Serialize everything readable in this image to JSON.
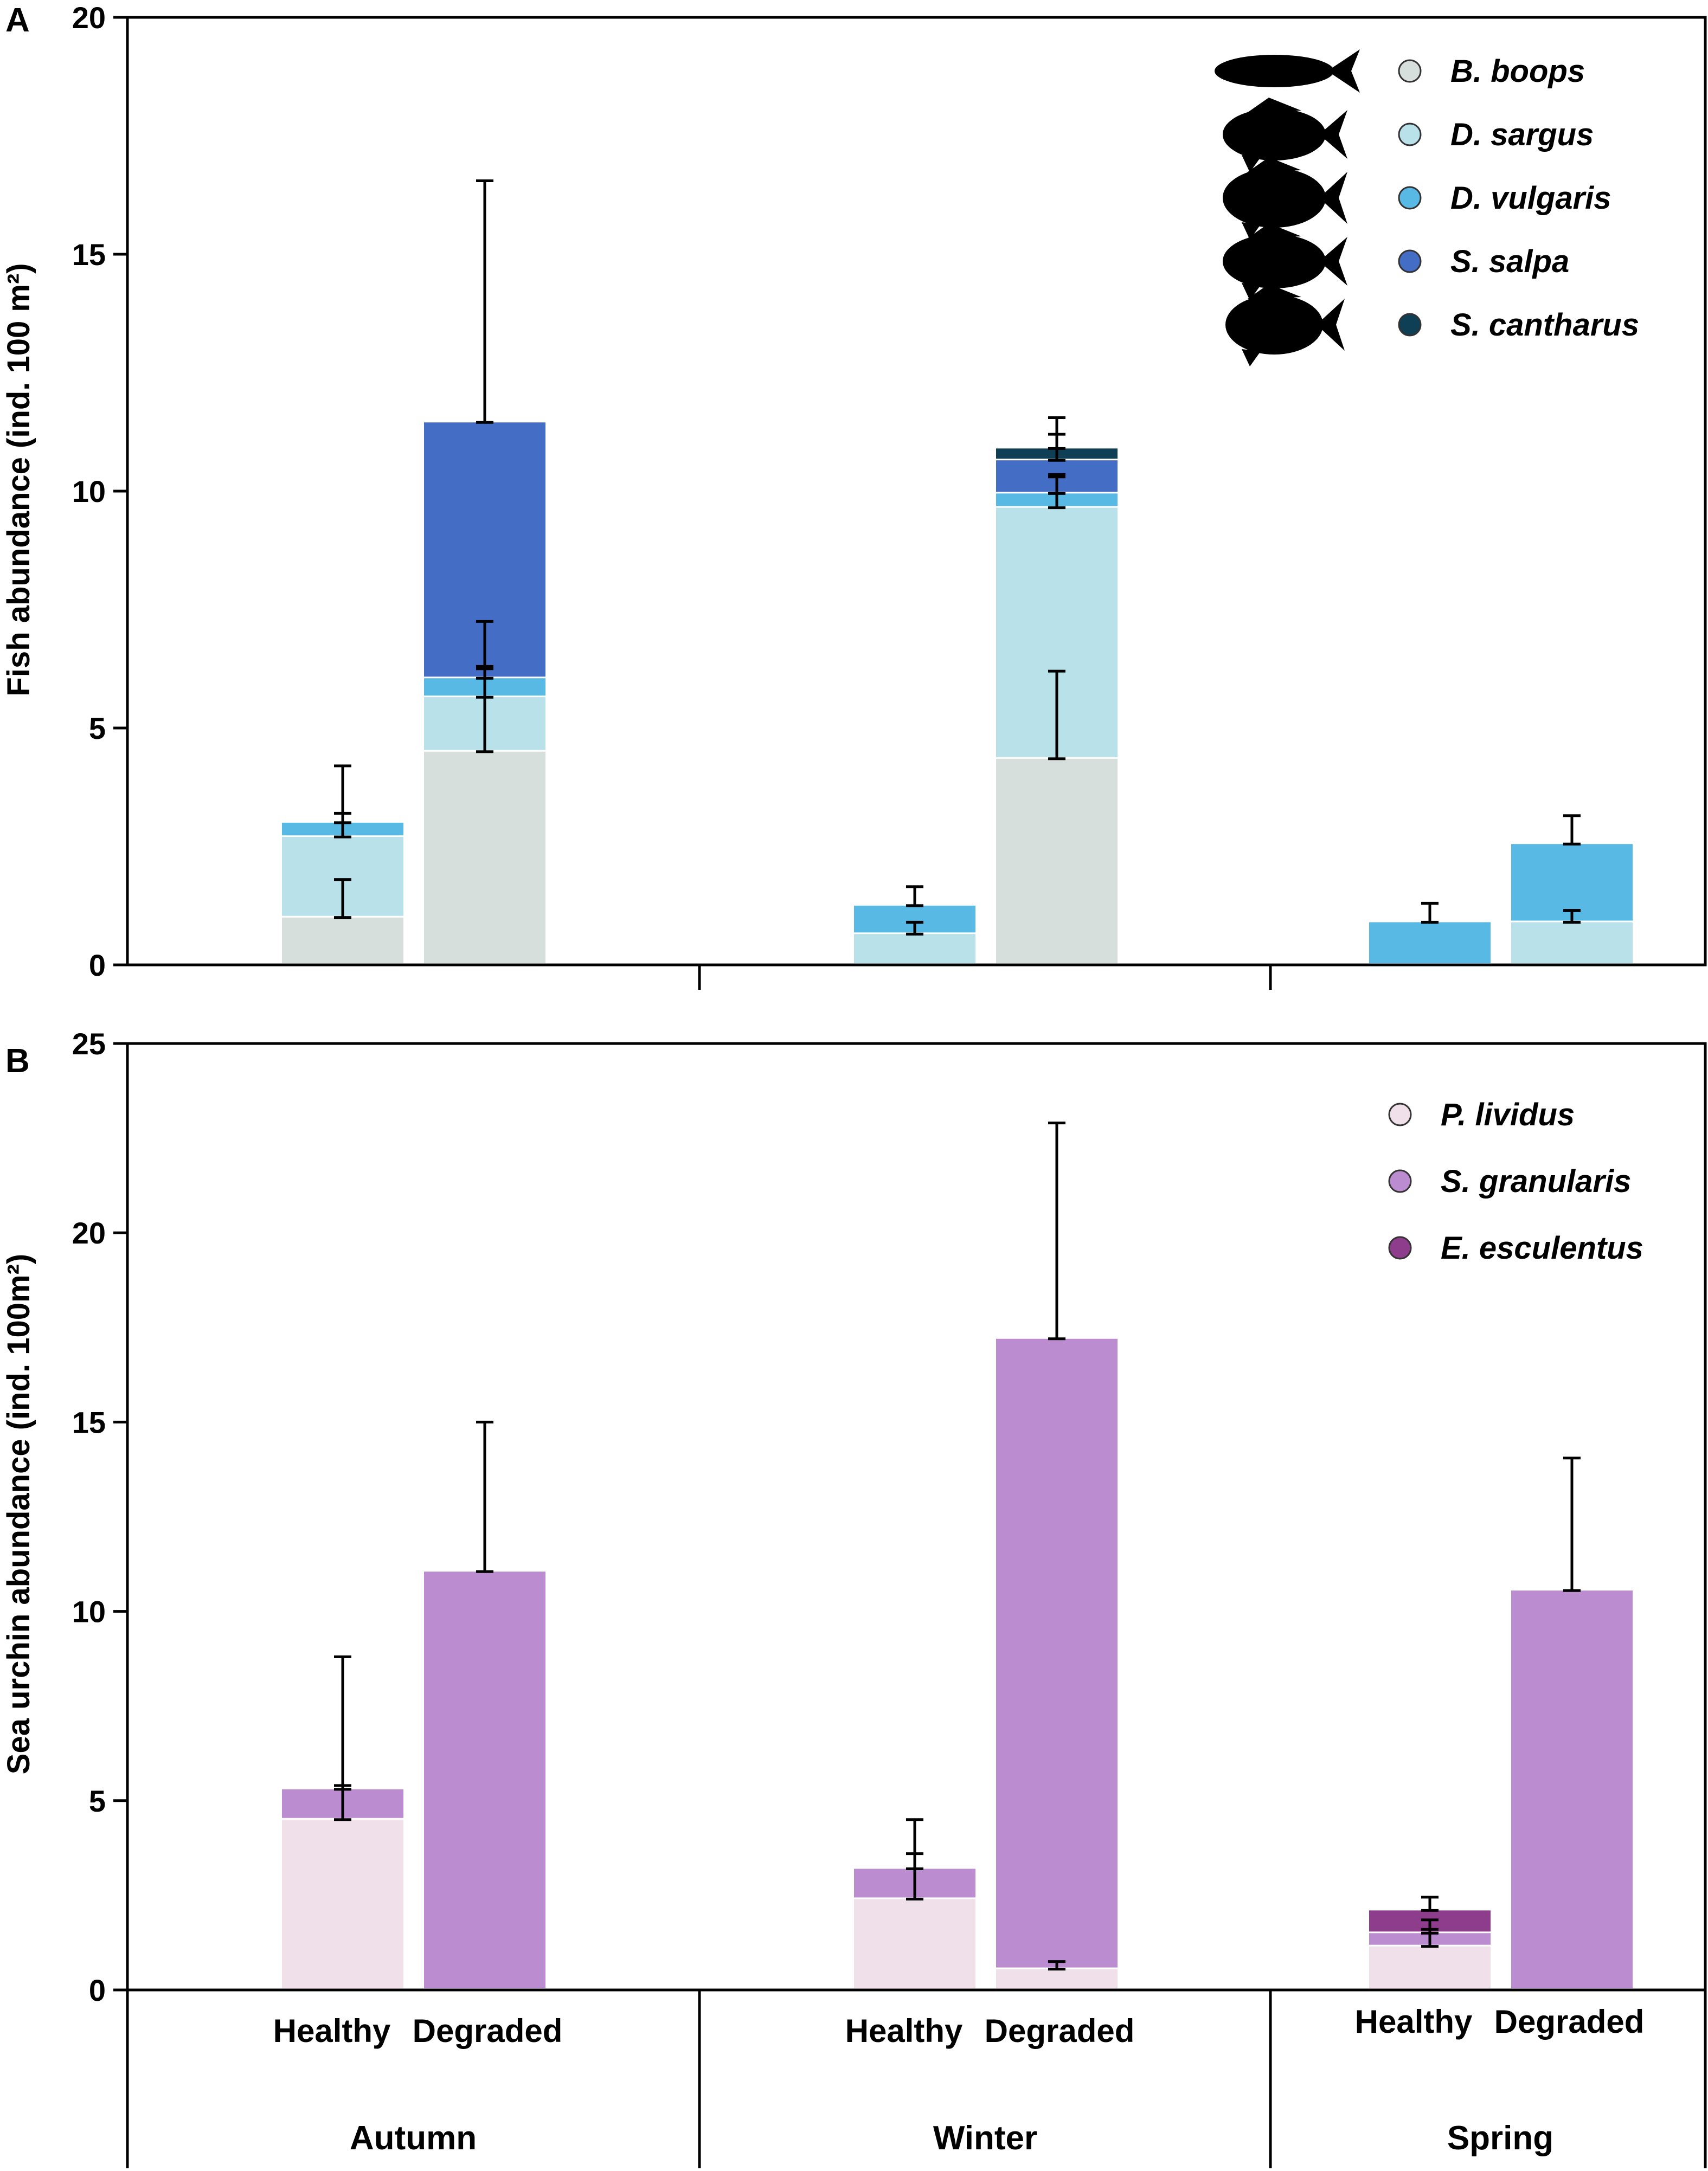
{
  "chart_data": [
    {
      "panel": "A",
      "type": "bar",
      "stacked": true,
      "ylabel": "Fish abundance (ind. 100 m²)",
      "ylim": [
        0,
        20
      ],
      "yticks": [
        "0",
        "5",
        "10",
        "15",
        "20"
      ],
      "groups": [
        "Autumn",
        "Winter",
        "Spring"
      ],
      "conditions": [
        "Healthy",
        "Degraded"
      ],
      "legend_position": "top-right",
      "legend_icons": [
        "fish-silhouette-bogue-icon",
        "fish-silhouette-sargus-icon",
        "fish-silhouette-vulgaris-icon",
        "fish-silhouette-salpa-icon",
        "fish-silhouette-cantharus-icon"
      ],
      "series": [
        {
          "name": "B. boops",
          "color": "#d6dfdb"
        },
        {
          "name": "D. sargus",
          "color": "#b9e1ea"
        },
        {
          "name": "D. vulgaris",
          "color": "#57b9e4"
        },
        {
          "name": "S. salpa",
          "color": "#446ec5"
        },
        {
          "name": "S. cantharus",
          "color": "#0f3f55"
        }
      ],
      "bars": [
        {
          "group": "Autumn",
          "condition": "Healthy",
          "values": [
            1.0,
            1.7,
            0.3,
            0,
            0
          ],
          "errors": [
            0.8,
            0.5,
            1.2,
            0,
            0
          ]
        },
        {
          "group": "Autumn",
          "condition": "Degraded",
          "values": [
            4.5,
            1.15,
            0.4,
            5.4,
            0
          ],
          "errors": [
            1.8,
            0.6,
            1.2,
            5.1,
            0
          ]
        },
        {
          "group": "Winter",
          "condition": "Healthy",
          "values": [
            0,
            0.65,
            0.6,
            0,
            0
          ],
          "errors": [
            0,
            0.25,
            0.4,
            0,
            0
          ]
        },
        {
          "group": "Winter",
          "condition": "Degraded",
          "values": [
            4.35,
            5.3,
            0.3,
            0.7,
            0.25
          ],
          "errors": [
            1.85,
            0.7,
            0.35,
            0.9,
            0.3
          ]
        },
        {
          "group": "Spring",
          "condition": "Healthy",
          "values": [
            0,
            0,
            0.9,
            0,
            0
          ],
          "errors": [
            0,
            0,
            0.4,
            0,
            0
          ]
        },
        {
          "group": "Spring",
          "condition": "Degraded",
          "values": [
            0,
            0.9,
            1.65,
            0,
            0
          ],
          "errors": [
            0,
            0.25,
            0.6,
            0,
            0
          ]
        }
      ]
    },
    {
      "panel": "B",
      "type": "bar",
      "stacked": true,
      "ylabel": "Sea urchin abundance (ind. 100m²)",
      "ylim": [
        0,
        25
      ],
      "yticks": [
        "0",
        "5",
        "10",
        "15",
        "20",
        "25"
      ],
      "groups": [
        "Autumn",
        "Winter",
        "Spring"
      ],
      "conditions": [
        "Healthy",
        "Degraded"
      ],
      "legend_position": "top-right",
      "series": [
        {
          "name": "P. lividus",
          "color": "#efe0ea"
        },
        {
          "name": "S. granularis",
          "color": "#bb8cd0"
        },
        {
          "name": "E. esculentus",
          "color": "#8e3c8c"
        }
      ],
      "bars": [
        {
          "group": "Autumn",
          "condition": "Healthy",
          "values": [
            4.5,
            0.8,
            0
          ],
          "errors": [
            0.9,
            3.5,
            0
          ]
        },
        {
          "group": "Autumn",
          "condition": "Degraded",
          "values": [
            0,
            11.05,
            0
          ],
          "errors": [
            0,
            3.95,
            0
          ]
        },
        {
          "group": "Winter",
          "condition": "Healthy",
          "values": [
            2.4,
            0.8,
            0
          ],
          "errors": [
            1.2,
            1.3,
            0
          ]
        },
        {
          "group": "Winter",
          "condition": "Degraded",
          "values": [
            0.55,
            16.65,
            0
          ],
          "errors": [
            0.2,
            5.7,
            0
          ]
        },
        {
          "group": "Spring",
          "condition": "Healthy",
          "values": [
            1.15,
            0.35,
            0.6
          ],
          "errors": [
            0.45,
            0.35,
            0.35
          ]
        },
        {
          "group": "Spring",
          "condition": "Degraded",
          "values": [
            0,
            10.55,
            0
          ],
          "errors": [
            0,
            3.5,
            0
          ]
        }
      ]
    }
  ]
}
